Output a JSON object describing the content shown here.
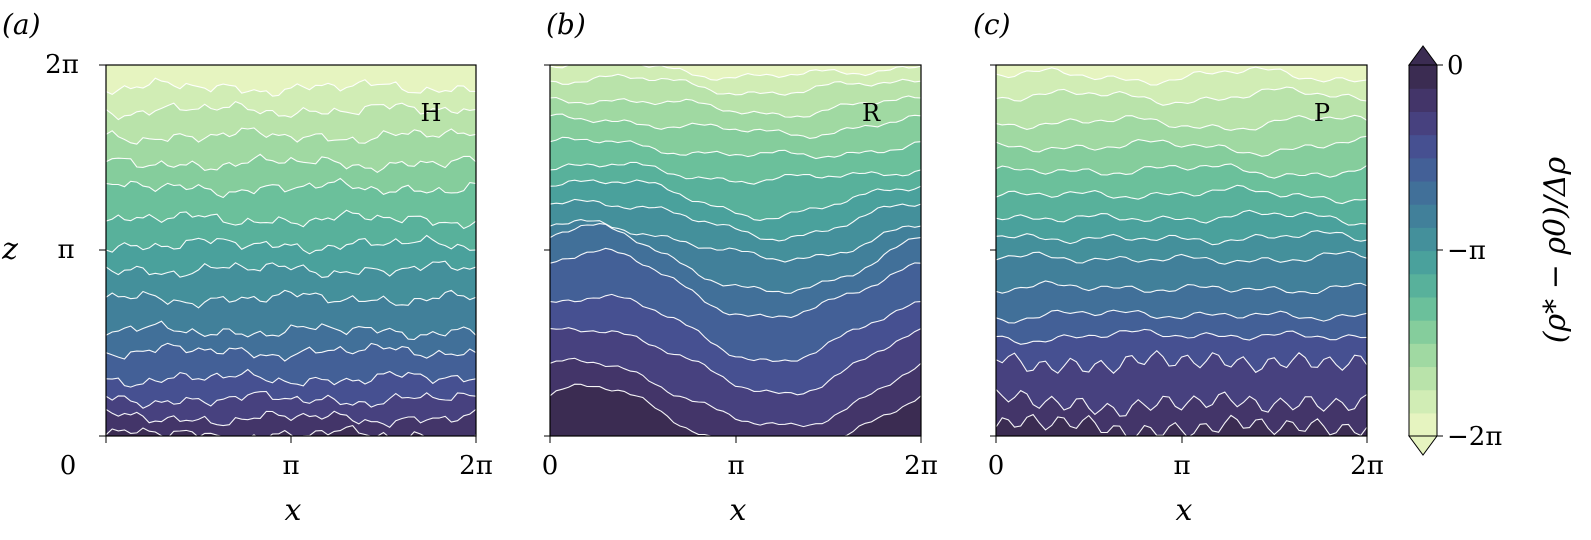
{
  "chart_data": [
    {
      "type": "heatmap",
      "panel_label": "(a)",
      "corner_label": "H",
      "xlabel": "x",
      "ylabel": "z",
      "xticks": [
        "0",
        "π",
        "2π"
      ],
      "yticks": [
        "0",
        "π",
        "2π"
      ],
      "xlim": [
        0,
        6.2832
      ],
      "ylim": [
        0,
        6.2832
      ],
      "contour_levels": [
        -6.2832,
        -5.8643,
        -5.4454,
        -5.0265,
        -4.6077,
        -4.1888,
        -3.7699,
        -3.351,
        -2.9322,
        -2.5133,
        -2.0944,
        -1.6755,
        -1.2566,
        -0.8378,
        -0.4189,
        0
      ],
      "contour_heights_z": [
        0.02,
        0.3,
        0.62,
        0.97,
        1.43,
        1.78,
        2.33,
        2.82,
        3.24,
        3.67,
        4.2,
        4.62,
        5.08,
        5.52,
        5.9
      ],
      "turbulence": "uniform"
    },
    {
      "type": "heatmap",
      "panel_label": "(b)",
      "corner_label": "R",
      "xlabel": "x",
      "ylabel": "",
      "xticks": [
        "0",
        "π",
        "2π"
      ],
      "yticks": [],
      "xlim": [
        0,
        6.2832
      ],
      "ylim": [
        0,
        6.2832
      ],
      "contour_levels": [
        -6.2832,
        -5.8643,
        -5.4454,
        -5.0265,
        -4.6077,
        -4.1888,
        -3.7699,
        -3.351,
        -2.9322,
        -2.5133,
        -2.0944,
        -1.6755,
        -1.2566,
        -0.8378,
        -0.4189,
        0
      ],
      "contour_heights_z": [
        0.25,
        0.7,
        1.3,
        1.85,
        2.55,
        2.95,
        3.3,
        3.7,
        4.05,
        4.45,
        4.85,
        5.25,
        5.6,
        5.95,
        6.2
      ],
      "turbulence": "large-scale billows"
    },
    {
      "type": "heatmap",
      "panel_label": "(c)",
      "corner_label": "P",
      "xlabel": "x",
      "ylabel": "",
      "xticks": [
        "0",
        "π",
        "2π"
      ],
      "yticks": [],
      "xlim": [
        0,
        6.2832
      ],
      "ylim": [
        0,
        6.2832
      ],
      "contour_levels": [
        -6.2832,
        -5.8643,
        -5.4454,
        -5.0265,
        -4.6077,
        -4.1888,
        -3.7699,
        -3.351,
        -2.9322,
        -2.5133,
        -2.0944,
        -1.6755,
        -1.2566,
        -0.8378,
        -0.4189,
        0
      ],
      "contour_heights_z": [
        0.15,
        0.55,
        1.25,
        1.7,
        2.05,
        2.5,
        3.0,
        3.35,
        3.7,
        4.1,
        4.5,
        4.9,
        5.3,
        5.75,
        6.1
      ],
      "turbulence": "bottom-concentrated"
    }
  ],
  "colorbar": {
    "label": "(ρ* − ρ0)/Δρ",
    "ticks": [
      "0",
      "−π",
      "−2π"
    ],
    "range": [
      -6.2832,
      0
    ],
    "extend": "both",
    "colors": [
      "#e6f4c0",
      "#d1edb5",
      "#b9e3aa",
      "#a0d9a2",
      "#85cd9c",
      "#6bc09b",
      "#58b19b",
      "#4aa19c",
      "#44909b",
      "#41809a",
      "#417099",
      "#436097",
      "#465091",
      "#47417f",
      "#433569",
      "#3b2c52"
    ]
  }
}
